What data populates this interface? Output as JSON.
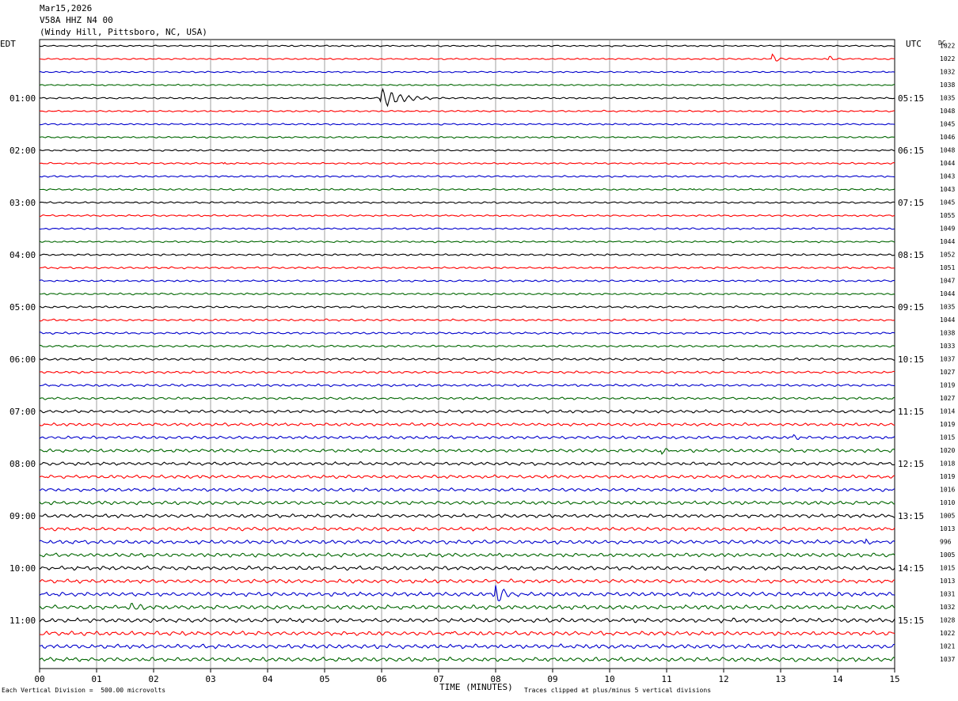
{
  "header": {
    "date": "Mar15,2026",
    "station": "V58A HHZ N4 00",
    "location": "(Windy Hill, Pittsboro, NC, USA)"
  },
  "left_tz": "EDT",
  "right_tz": "UTC",
  "dc_label": "DC",
  "footer": {
    "scale_note": "Each Vertical Division =  500.00 microvolts",
    "xlabel": "TIME (MINUTES)",
    "clip_note": "Traces clipped at plus/minus 5 vertical divisions"
  },
  "colors": {
    "trace_cycle": [
      "#000000",
      "#ff0000",
      "#0000cc",
      "#006600"
    ],
    "grid": "#888888"
  },
  "chart_data": {
    "type": "line",
    "title": "V58A HHZ N4 00 (Windy Hill, Pittsboro, NC, USA)",
    "xlabel": "TIME (MINUTES)",
    "xlim": [
      0,
      15
    ],
    "x_ticks": [
      "00",
      "01",
      "02",
      "03",
      "04",
      "05",
      "06",
      "07",
      "08",
      "09",
      "10",
      "11",
      "12",
      "13",
      "14",
      "15"
    ],
    "trace_count": 48,
    "left_time_labels": [
      "01:00",
      "02:00",
      "03:00",
      "04:00",
      "05:00",
      "06:00",
      "07:00",
      "08:00",
      "09:00",
      "10:00",
      "11:00"
    ],
    "right_time_labels": [
      "05:15",
      "06:15",
      "07:15",
      "08:15",
      "09:15",
      "10:15",
      "11:15",
      "12:15",
      "13:15",
      "14:15",
      "15:15"
    ],
    "dc_offsets": [
      1022,
      1022,
      1032,
      1038,
      1035,
      1048,
      1045,
      1046,
      1048,
      1044,
      1043,
      1043,
      1045,
      1055,
      1049,
      1044,
      1052,
      1051,
      1047,
      1044,
      1035,
      1044,
      1038,
      1033,
      1037,
      1027,
      1019,
      1027,
      1014,
      1019,
      1015,
      1020,
      1018,
      1019,
      1016,
      1010,
      1005,
      1013,
      996,
      1005,
      1015,
      1013,
      1031,
      1032,
      1028,
      1022,
      1021,
      1037
    ],
    "noise_amplitude_divisions": [
      0.25,
      0.25,
      0.25,
      0.25,
      0.28,
      0.28,
      0.28,
      0.28,
      0.28,
      0.28,
      0.3,
      0.3,
      0.3,
      0.3,
      0.3,
      0.3,
      0.32,
      0.32,
      0.32,
      0.32,
      0.35,
      0.35,
      0.35,
      0.35,
      0.4,
      0.4,
      0.4,
      0.4,
      0.5,
      0.5,
      0.5,
      0.55,
      0.55,
      0.55,
      0.55,
      0.6,
      0.6,
      0.6,
      0.65,
      0.65,
      0.65,
      0.65,
      0.7,
      0.7,
      0.7,
      0.7,
      0.7,
      0.7
    ],
    "events": [
      {
        "trace": 1,
        "minute": 12.85,
        "amplitude": 2.2,
        "duration_min": 0.3
      },
      {
        "trace": 1,
        "minute": 13.85,
        "amplitude": 1.2,
        "duration_min": 0.4
      },
      {
        "trace": 4,
        "minute": 5.97,
        "amplitude": 5.0,
        "duration_min": 0.9
      },
      {
        "trace": 9,
        "minute": 3.25,
        "amplitude": 1.0,
        "duration_min": 0.15
      },
      {
        "trace": 11,
        "minute": 11.45,
        "amplitude": 3.0,
        "duration_min": 0.05
      },
      {
        "trace": 31,
        "minute": 10.9,
        "amplitude": 2.0,
        "duration_min": 0.4
      },
      {
        "trace": 30,
        "minute": 13.2,
        "amplitude": 1.5,
        "duration_min": 0.3
      },
      {
        "trace": 38,
        "minute": 14.5,
        "amplitude": 2.0,
        "duration_min": 0.3
      },
      {
        "trace": 42,
        "minute": 8.0,
        "amplitude": 5.0,
        "duration_min": 0.55
      },
      {
        "trace": 43,
        "minute": 1.6,
        "amplitude": 2.0,
        "duration_min": 0.3
      },
      {
        "trace": 45,
        "minute": 7.2,
        "amplitude": 2.5,
        "duration_min": 0.08
      }
    ]
  }
}
